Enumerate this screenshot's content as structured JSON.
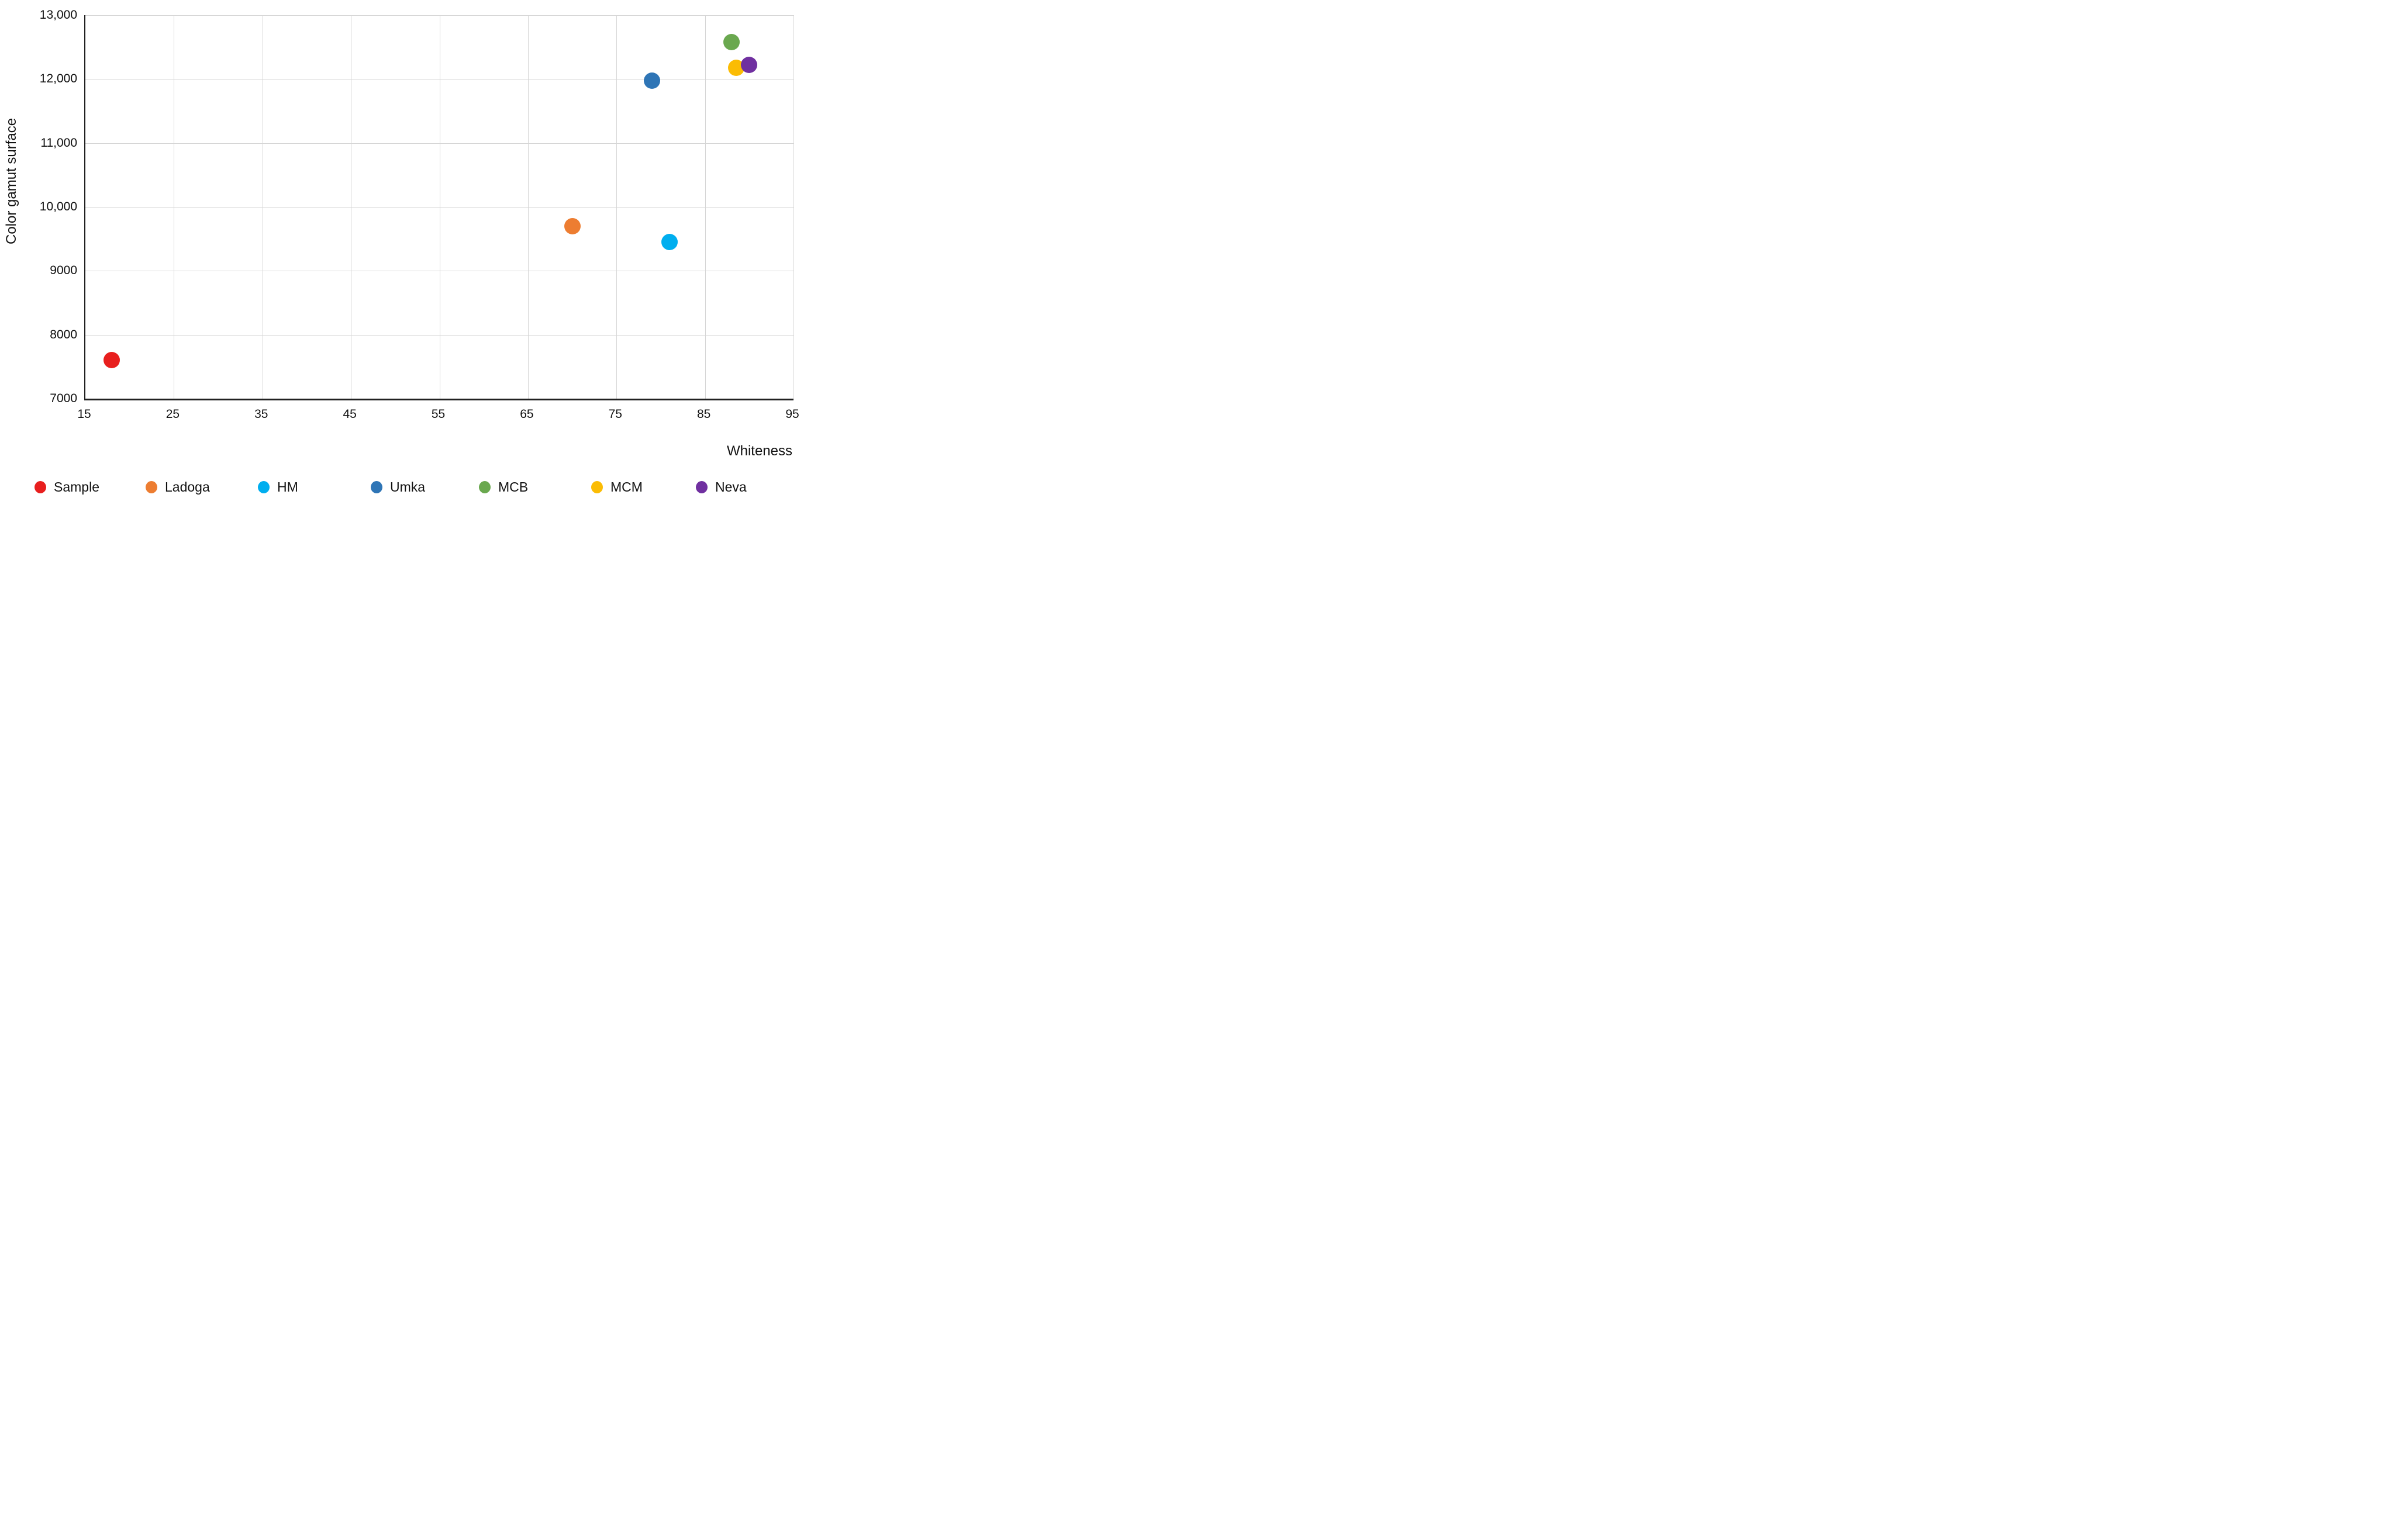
{
  "chart_data": {
    "type": "scatter",
    "title": "",
    "xlabel": "Whiteness",
    "ylabel": "Color gamut surface",
    "xlim": [
      15,
      95
    ],
    "ylim": [
      7000,
      13000
    ],
    "grid": true,
    "legend_position": "bottom",
    "x_ticks": [
      {
        "v": 15,
        "label": "15"
      },
      {
        "v": 25,
        "label": "25"
      },
      {
        "v": 35,
        "label": "35"
      },
      {
        "v": 45,
        "label": "45"
      },
      {
        "v": 55,
        "label": "55"
      },
      {
        "v": 65,
        "label": "65"
      },
      {
        "v": 75,
        "label": "75"
      },
      {
        "v": 85,
        "label": "85"
      },
      {
        "v": 95,
        "label": "95"
      }
    ],
    "y_ticks": [
      {
        "v": 7000,
        "label": "7000"
      },
      {
        "v": 8000,
        "label": "8000"
      },
      {
        "v": 9000,
        "label": "9000"
      },
      {
        "v": 10000,
        "label": "10,000"
      },
      {
        "v": 11000,
        "label": "11,000"
      },
      {
        "v": 12000,
        "label": "12,000"
      },
      {
        "v": 13000,
        "label": "13,000"
      }
    ],
    "series": [
      {
        "name": "Sample",
        "color": "#e81f1e",
        "points": [
          {
            "x": 18,
            "y": 7600
          }
        ]
      },
      {
        "name": "Ladoga",
        "color": "#ed7d31",
        "points": [
          {
            "x": 70,
            "y": 9700
          }
        ]
      },
      {
        "name": "HM",
        "color": "#00aeef",
        "points": [
          {
            "x": 81,
            "y": 9450
          }
        ]
      },
      {
        "name": "Umka",
        "color": "#2e75b6",
        "points": [
          {
            "x": 79,
            "y": 11975
          }
        ]
      },
      {
        "name": "MCB",
        "color": "#6aa84f",
        "points": [
          {
            "x": 88,
            "y": 12575
          }
        ]
      },
      {
        "name": "MCM",
        "color": "#fbbc04",
        "points": [
          {
            "x": 88.5,
            "y": 12175
          }
        ]
      },
      {
        "name": "Neva",
        "color": "#7030a0",
        "points": [
          {
            "x": 90,
            "y": 12225
          }
        ]
      }
    ],
    "colors": {
      "axis": "#212121",
      "grid": "#d6d6d6",
      "text": "#111111",
      "background": "#ffffff"
    }
  }
}
